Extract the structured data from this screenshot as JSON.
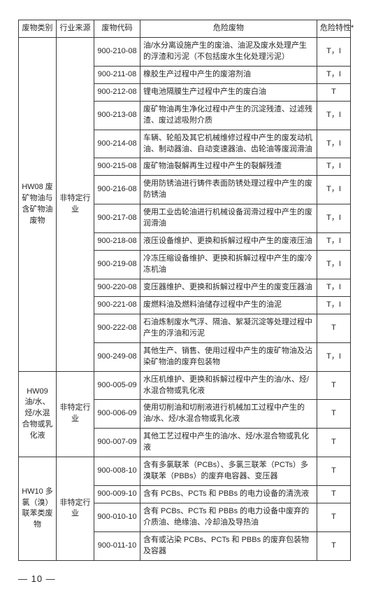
{
  "headers": {
    "category": "废物类别",
    "source": "行业来源",
    "code": "废物代码",
    "desc": "危险废物",
    "hazard": "危险特性*"
  },
  "groups": [
    {
      "category": "HW08\n废矿物油与含矿物油废物",
      "source": "非特定行业",
      "rows": [
        {
          "code": "900-210-08",
          "desc": "油/水分离设施产生的废油、油泥及废水处理产生的浮渣和污泥（不包括废水生化处理污泥）",
          "hz": "T，I"
        },
        {
          "code": "900-211-08",
          "desc": "橡胶生产过程中产生的废溶剂油",
          "hz": "T，I"
        },
        {
          "code": "900-212-08",
          "desc": "锂电池隔膜生产过程中产生的废白油",
          "hz": "T"
        },
        {
          "code": "900-213-08",
          "desc": "废矿物油再生净化过程中产生的沉淀残渣、过滤残渣、废过滤吸附介质",
          "hz": "T，I"
        },
        {
          "code": "900-214-08",
          "desc": "车辆、轮船及其它机械维修过程中产生的废发动机油、制动器油、自动变速器油、齿轮油等废润滑油",
          "hz": "T，I"
        },
        {
          "code": "900-215-08",
          "desc": "废矿物油裂解再生过程中产生的裂解残渣",
          "hz": "T，I"
        },
        {
          "code": "900-216-08",
          "desc": "使用防锈油进行铸件表面防锈处理过程中产生的废防锈油",
          "hz": "T，I"
        },
        {
          "code": "900-217-08",
          "desc": "使用工业齿轮油进行机械设备润滑过程中产生的废润滑油",
          "hz": "T，I"
        },
        {
          "code": "900-218-08",
          "desc": "液压设备维护、更换和拆解过程中产生的废液压油",
          "hz": "T，I"
        },
        {
          "code": "900-219-08",
          "desc": "冷冻压缩设备维护、更换和拆解过程中产生的废冷冻机油",
          "hz": "T，I"
        },
        {
          "code": "900-220-08",
          "desc": "变压器维护、更换和拆解过程中产生的废变压器油",
          "hz": "T，I"
        },
        {
          "code": "900-221-08",
          "desc": "废燃料油及燃料油储存过程中产生的油泥",
          "hz": "T，I"
        },
        {
          "code": "900-222-08",
          "desc": "石油炼制废水气浮、隔油、絮凝沉淀等处理过程中产生的浮油和污泥",
          "hz": "T"
        },
        {
          "code": "900-249-08",
          "desc": "其他生产、销售、使用过程中产生的废矿物油及沾染矿物油的废弃包装物",
          "hz": "T，I"
        }
      ]
    },
    {
      "category": "HW09 油/水、烃/水混合物或乳化液",
      "source": "非特定行业",
      "rows": [
        {
          "code": "900-005-09",
          "desc": "水压机维护、更换和拆解过程中产生的油/水、烃/水混合物或乳化液",
          "hz": "T"
        },
        {
          "code": "900-006-09",
          "desc": "使用切削油和切削液进行机械加工过程中产生的油/水、烃/水混合物或乳化液",
          "hz": "T"
        },
        {
          "code": "900-007-09",
          "desc": "其他工艺过程中产生的油/水、烃/水混合物或乳化液",
          "hz": "T"
        }
      ]
    },
    {
      "category": "HW10\n多氯（溴）联苯类废物",
      "source": "非特定行业",
      "rows": [
        {
          "code": "900-008-10",
          "desc": "含有多氯联苯（PCBs）、多氯三联苯（PCTs）多溴联苯（PBBs）的废弃电容器、变压器",
          "hz": "T"
        },
        {
          "code": "900-009-10",
          "desc": "含有 PCBs、PCTs 和 PBBs 的电力设备的清洗液",
          "hz": "T"
        },
        {
          "code": "900-010-10",
          "desc": "含有 PCBs、PCTs 和 PBBs 的电力设备中废弃的介质油、绝缘油、冷却油及导热油",
          "hz": "T"
        },
        {
          "code": "900-011-10",
          "desc": "含有或沾染 PCBs、PCTs 和 PBBs 的废弃包装物及容器",
          "hz": "T"
        }
      ]
    }
  ],
  "page_label": "—  10  —"
}
